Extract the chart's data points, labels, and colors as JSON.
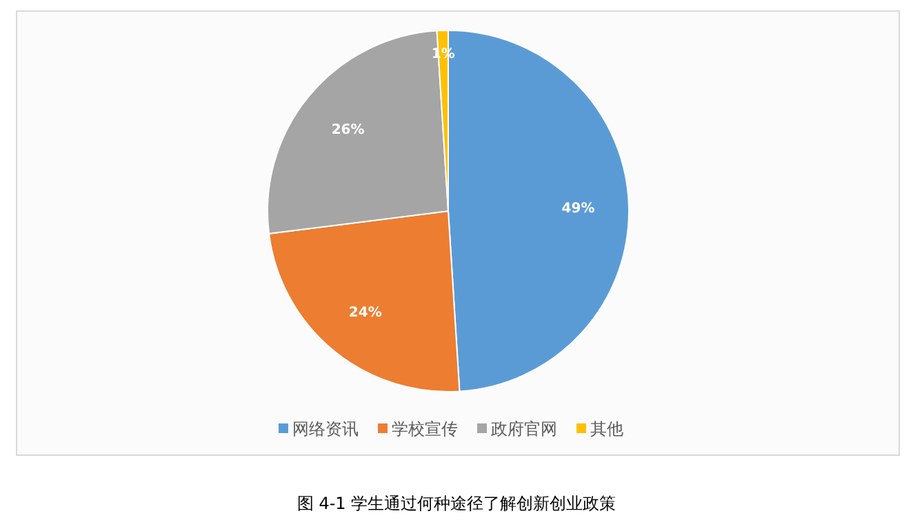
{
  "chart_data": {
    "type": "pie",
    "categories": [
      "网络资讯",
      "学校宣传",
      "政府官网",
      "其他"
    ],
    "values": [
      49,
      24,
      26,
      1
    ],
    "colors": [
      "#5b9bd5",
      "#ed7d31",
      "#a5a5a5",
      "#ffc000"
    ],
    "value_labels": [
      "49%",
      "24%",
      "26%",
      "1%"
    ],
    "legend": "bottom",
    "annotations": [
      "图 4-1  学生通过何种途径了解创新创业政策"
    ]
  }
}
